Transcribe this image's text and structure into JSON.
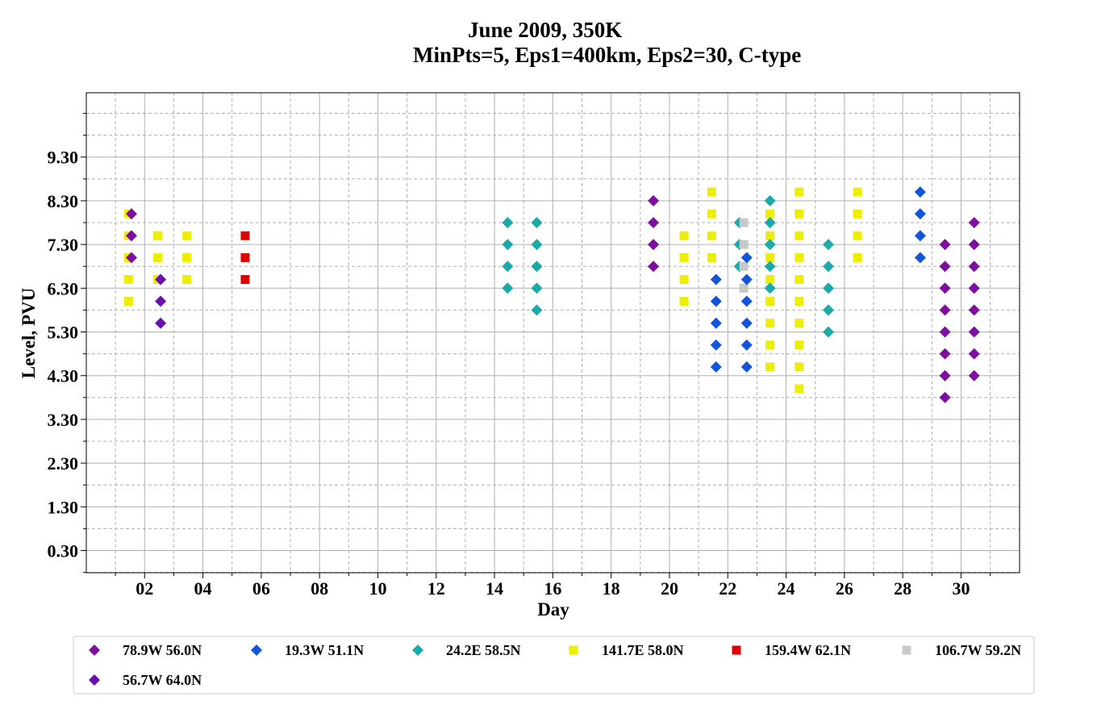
{
  "chart_data": {
    "type": "scatter",
    "title_line1": "June 2009, 350K",
    "title_line2": "MinPts=5, Eps1=400km, Eps2=30, C-type",
    "xlabel": "Day",
    "ylabel": "Level, PVU",
    "xlim": [
      0,
      32
    ],
    "ylim": [
      -0.2,
      10.75
    ],
    "x_ticks": [
      2,
      4,
      6,
      8,
      10,
      12,
      14,
      16,
      18,
      20,
      22,
      24,
      26,
      28,
      30
    ],
    "x_tick_labels": [
      "02",
      "04",
      "06",
      "08",
      "10",
      "12",
      "14",
      "16",
      "18",
      "20",
      "22",
      "24",
      "26",
      "28",
      "30"
    ],
    "y_ticks": [
      0.3,
      1.3,
      2.3,
      3.3,
      4.3,
      5.3,
      6.3,
      7.3,
      8.3,
      9.3
    ],
    "y_tick_labels": [
      "0.30",
      "1.30",
      "2.30",
      "3.30",
      "4.30",
      "5.30",
      "6.30",
      "7.30",
      "8.30",
      "9.30"
    ],
    "major_grid": "solid",
    "minor_grid": "dashed",
    "legend_position": "bottom, below the axes",
    "series": [
      {
        "name": "78.9W 56.0N",
        "marker": "diamond",
        "color": "#7d0f9e",
        "points": [
          [
            1.55,
            8.0
          ],
          [
            1.55,
            7.5
          ],
          [
            1.55,
            7.0
          ],
          [
            19.45,
            8.3
          ],
          [
            19.45,
            7.8
          ],
          [
            19.45,
            7.3
          ],
          [
            19.45,
            6.8
          ],
          [
            29.45,
            7.3
          ],
          [
            29.45,
            6.8
          ],
          [
            29.45,
            6.3
          ],
          [
            29.45,
            5.8
          ],
          [
            29.45,
            5.3
          ],
          [
            29.45,
            4.8
          ],
          [
            29.45,
            4.3
          ],
          [
            29.45,
            3.8
          ],
          [
            30.45,
            7.8
          ],
          [
            30.45,
            7.3
          ],
          [
            30.45,
            6.8
          ],
          [
            30.45,
            6.3
          ],
          [
            30.45,
            5.8
          ],
          [
            30.45,
            5.3
          ],
          [
            30.45,
            4.8
          ],
          [
            30.45,
            4.3
          ]
        ]
      },
      {
        "name": "19.3W 51.1N",
        "marker": "diamond",
        "color": "#1155dd",
        "points": [
          [
            21.6,
            6.5
          ],
          [
            21.6,
            6.0
          ],
          [
            21.6,
            5.5
          ],
          [
            21.6,
            5.0
          ],
          [
            21.6,
            4.5
          ],
          [
            22.65,
            7.0
          ],
          [
            22.65,
            6.5
          ],
          [
            22.65,
            6.0
          ],
          [
            22.65,
            5.5
          ],
          [
            22.65,
            5.0
          ],
          [
            22.65,
            4.5
          ],
          [
            28.6,
            8.5
          ],
          [
            28.6,
            8.0
          ],
          [
            28.6,
            7.5
          ],
          [
            28.6,
            7.0
          ]
        ]
      },
      {
        "name": "24.2E 58.5N",
        "marker": "diamond",
        "color": "#1aaaa8",
        "points": [
          [
            14.45,
            7.8
          ],
          [
            14.45,
            7.3
          ],
          [
            14.45,
            6.8
          ],
          [
            14.45,
            6.3
          ],
          [
            15.45,
            7.8
          ],
          [
            15.45,
            7.3
          ],
          [
            15.45,
            6.8
          ],
          [
            15.45,
            6.3
          ],
          [
            15.45,
            5.8
          ],
          [
            22.4,
            7.8
          ],
          [
            22.4,
            7.3
          ],
          [
            22.4,
            6.8
          ],
          [
            23.45,
            8.3
          ],
          [
            23.45,
            7.8
          ],
          [
            23.45,
            7.3
          ],
          [
            23.45,
            6.8
          ],
          [
            23.45,
            6.3
          ],
          [
            25.45,
            7.3
          ],
          [
            25.45,
            6.8
          ],
          [
            25.45,
            6.3
          ],
          [
            25.45,
            5.8
          ],
          [
            25.45,
            5.3
          ]
        ]
      },
      {
        "name": "141.7E 58.0N",
        "marker": "square",
        "color": "#eeee00",
        "points": [
          [
            1.45,
            8.0
          ],
          [
            1.45,
            7.5
          ],
          [
            1.45,
            7.0
          ],
          [
            1.45,
            6.5
          ],
          [
            1.45,
            6.0
          ],
          [
            2.45,
            7.5
          ],
          [
            2.45,
            7.0
          ],
          [
            2.45,
            6.5
          ],
          [
            3.45,
            7.5
          ],
          [
            3.45,
            7.0
          ],
          [
            3.45,
            6.5
          ],
          [
            20.5,
            7.5
          ],
          [
            20.5,
            7.0
          ],
          [
            20.5,
            6.5
          ],
          [
            20.5,
            6.0
          ],
          [
            21.45,
            8.5
          ],
          [
            21.45,
            8.0
          ],
          [
            21.45,
            7.5
          ],
          [
            21.45,
            7.0
          ],
          [
            23.45,
            8.0
          ],
          [
            23.45,
            7.5
          ],
          [
            23.45,
            7.0
          ],
          [
            23.45,
            6.5
          ],
          [
            23.45,
            6.0
          ],
          [
            23.45,
            5.5
          ],
          [
            23.45,
            5.0
          ],
          [
            23.45,
            4.5
          ],
          [
            24.45,
            8.5
          ],
          [
            24.45,
            8.0
          ],
          [
            24.45,
            7.5
          ],
          [
            24.45,
            7.0
          ],
          [
            24.45,
            6.5
          ],
          [
            24.45,
            6.0
          ],
          [
            24.45,
            5.5
          ],
          [
            24.45,
            5.0
          ],
          [
            24.45,
            4.5
          ],
          [
            24.45,
            4.0
          ],
          [
            26.45,
            8.5
          ],
          [
            26.45,
            8.0
          ],
          [
            26.45,
            7.5
          ],
          [
            26.45,
            7.0
          ]
        ]
      },
      {
        "name": "159.4W 62.1N",
        "marker": "square",
        "color": "#e00000",
        "points": [
          [
            5.45,
            7.5
          ],
          [
            5.45,
            7.0
          ],
          [
            5.45,
            6.5
          ]
        ]
      },
      {
        "name": "106.7W 59.2N",
        "marker": "square",
        "color": "#c8c8c8",
        "points": [
          [
            22.55,
            7.8
          ],
          [
            22.55,
            7.3
          ],
          [
            22.55,
            6.8
          ],
          [
            22.55,
            6.3
          ]
        ]
      },
      {
        "name": "56.7W 64.0N",
        "marker": "diamond",
        "color": "#6a0fb0",
        "points": [
          [
            2.55,
            6.5
          ],
          [
            2.55,
            6.0
          ],
          [
            2.55,
            5.5
          ]
        ]
      }
    ]
  }
}
